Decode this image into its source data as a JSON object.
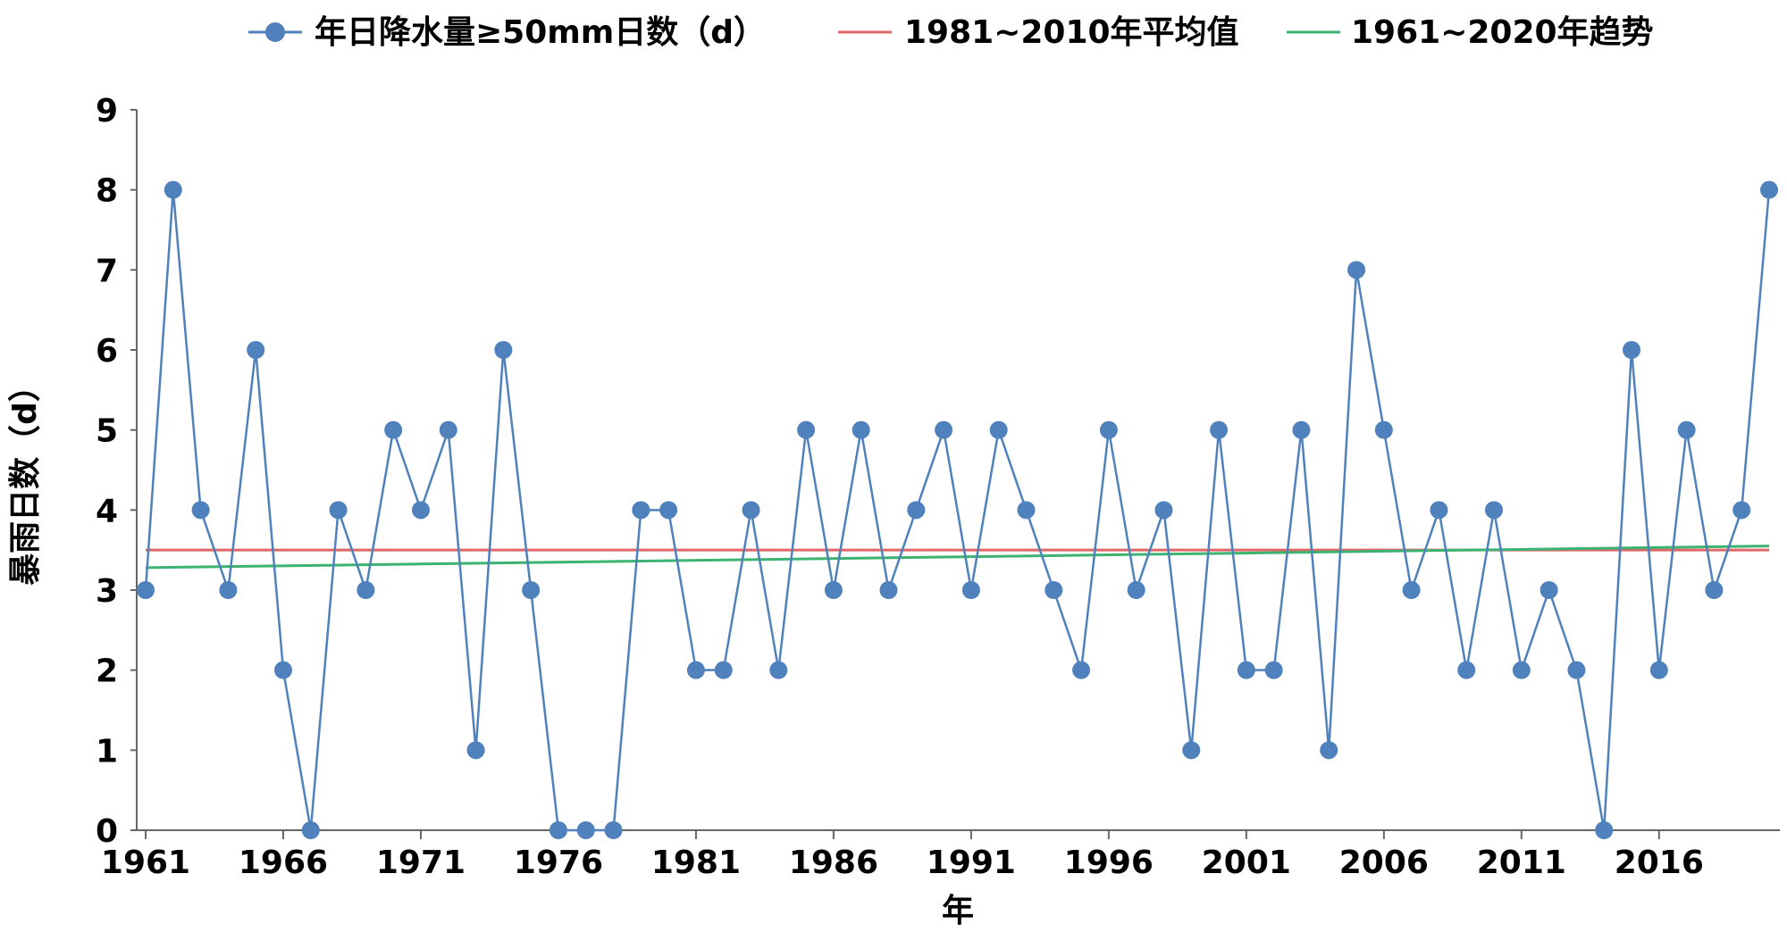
{
  "chart_data": {
    "type": "line",
    "title": "",
    "xlabel": "年",
    "ylabel": "暴雨日数（d）",
    "x": [
      1961,
      1962,
      1963,
      1964,
      1965,
      1966,
      1967,
      1968,
      1969,
      1970,
      1971,
      1972,
      1973,
      1974,
      1975,
      1976,
      1977,
      1978,
      1979,
      1980,
      1981,
      1982,
      1983,
      1984,
      1985,
      1986,
      1987,
      1988,
      1989,
      1990,
      1991,
      1992,
      1993,
      1994,
      1995,
      1996,
      1997,
      1998,
      1999,
      2000,
      2001,
      2002,
      2003,
      2004,
      2005,
      2006,
      2007,
      2008,
      2009,
      2010,
      2011,
      2012,
      2013,
      2014,
      2015,
      2016,
      2017,
      2018,
      2019,
      2020
    ],
    "xlim": [
      1961,
      2020
    ],
    "ylim": [
      0,
      9
    ],
    "xticks": [
      "1961",
      "1966",
      "1971",
      "1976",
      "1981",
      "1986",
      "1991",
      "1996",
      "2001",
      "2006",
      "2011",
      "2016"
    ],
    "yticks": [
      "0",
      "1",
      "2",
      "3",
      "4",
      "5",
      "6",
      "7",
      "8",
      "9"
    ],
    "legend_position": "top",
    "series": [
      {
        "name": "年日降水量≥50mm日数（d）",
        "color": "#4f81bd",
        "marker": "circle",
        "values": [
          3,
          8,
          4,
          3,
          6,
          2,
          0,
          4,
          3,
          5,
          4,
          5,
          1,
          6,
          3,
          0,
          0,
          0,
          4,
          4,
          2,
          2,
          4,
          2,
          5,
          3,
          5,
          3,
          4,
          5,
          3,
          5,
          4,
          3,
          2,
          5,
          3,
          4,
          1,
          5,
          2,
          2,
          5,
          1,
          7,
          5,
          3,
          4,
          2,
          4,
          2,
          3,
          2,
          0,
          6,
          2,
          5,
          3,
          4,
          8
        ]
      },
      {
        "name": "1981~2010年平均值",
        "color": "#e06666",
        "marker": "none",
        "values_endpoints": [
          3.5,
          3.5
        ]
      },
      {
        "name": "1961~2020年趋势",
        "color": "#3cb371",
        "marker": "none",
        "values_endpoints": [
          3.28,
          3.55
        ]
      }
    ]
  }
}
